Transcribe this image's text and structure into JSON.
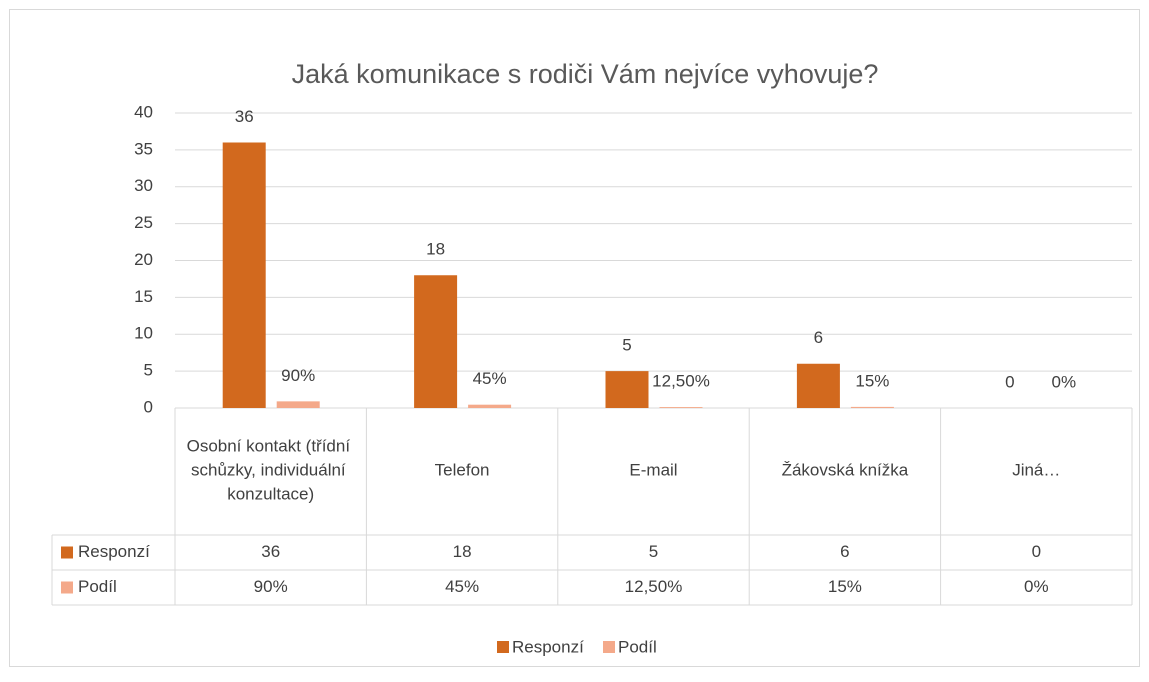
{
  "chart_data": {
    "type": "bar",
    "title": "Jaká komunikace s rodiči Vám nejvíce vyhovuje?",
    "categories": [
      "Osobní kontakt (třídní schůzky, individuální konzultace)",
      "Telefon",
      "E-mail",
      "Žákovská knížka",
      "Jiná…"
    ],
    "series": [
      {
        "name": "Responzí",
        "color": "#d2691e",
        "values": [
          36,
          18,
          5,
          6,
          0
        ]
      },
      {
        "name": "Podíl",
        "color": "#f4a98a",
        "values": [
          0.9,
          0.45,
          0.125,
          0.15,
          0
        ],
        "value_labels": [
          "90%",
          "45%",
          "12,50%",
          "15%",
          "0%"
        ]
      }
    ],
    "ylim": [
      0,
      40
    ],
    "yticks": [
      0,
      5,
      10,
      15,
      20,
      25,
      30,
      35,
      40
    ],
    "grid": true,
    "legend": "bottom",
    "data_table": true
  }
}
